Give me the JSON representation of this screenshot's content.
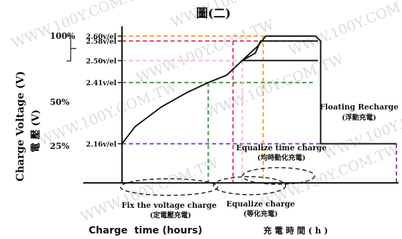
{
  "figure_title": "圖(二)",
  "watermark": "WWW.100Y.COM.TW",
  "chart_data": {
    "type": "line",
    "title": "圖(二)",
    "ylabel": "Charge Voltage (V)",
    "ylabel_zh": "電 壓 (V)",
    "xlabel": "Charge  time (hours)",
    "xlabel_zh": "充 電 時 間 ( h )",
    "y_level_labels": [
      {
        "value": 2.6,
        "label": "2.60v/el",
        "color": "#f0a030"
      },
      {
        "value": 2.58,
        "label": "2.58v/el",
        "color": "#e8306a"
      },
      {
        "value": 2.5,
        "label": "2.50v/el",
        "color": "#f4b8cc"
      },
      {
        "value": 2.41,
        "label": "2.41v/el",
        "color": "#2f9e44"
      },
      {
        "value": 2.16,
        "label": "2.16v/el",
        "color": "#8a3fc4"
      }
    ],
    "percent_ticks": [
      {
        "label": "100%",
        "value": 2.6
      },
      {
        "label": "50%",
        "value": 2.33
      },
      {
        "label": "25%",
        "value": 2.15
      }
    ],
    "series": [
      {
        "points": [
          [
            0,
            2.16
          ],
          [
            0.5,
            2.23
          ],
          [
            1.5,
            2.31
          ],
          [
            2.5,
            2.37
          ],
          [
            3.3,
            2.41
          ],
          [
            4.0,
            2.44
          ],
          [
            4.6,
            2.5
          ],
          [
            5.2,
            2.56
          ],
          [
            5.5,
            2.6
          ],
          [
            7.4,
            2.6
          ],
          [
            7.6,
            2.58
          ],
          [
            7.6,
            2.16
          ],
          [
            10.5,
            2.16
          ]
        ]
      },
      {
        "points": [
          [
            4.6,
            2.5
          ],
          [
            5.1,
            2.53
          ],
          [
            5.3,
            2.58
          ],
          [
            7.5,
            2.58
          ]
        ]
      },
      {
        "points": [
          [
            4.6,
            2.5
          ],
          [
            7.5,
            2.5
          ]
        ]
      }
    ],
    "phases": [
      {
        "name": "Fix the voltage charge",
        "name_zh": "(定電壓充電)"
      },
      {
        "name": "Equalize charge",
        "name_zh": "(等化充電)"
      },
      {
        "name": "Equalize time charge",
        "name_zh": "(均時勤化充電)"
      },
      {
        "name": "Floating Recharge",
        "name_zh": "(浮動充電)"
      }
    ],
    "xlim": [
      0,
      10.5
    ],
    "ylim": [
      2.0,
      2.64
    ]
  }
}
